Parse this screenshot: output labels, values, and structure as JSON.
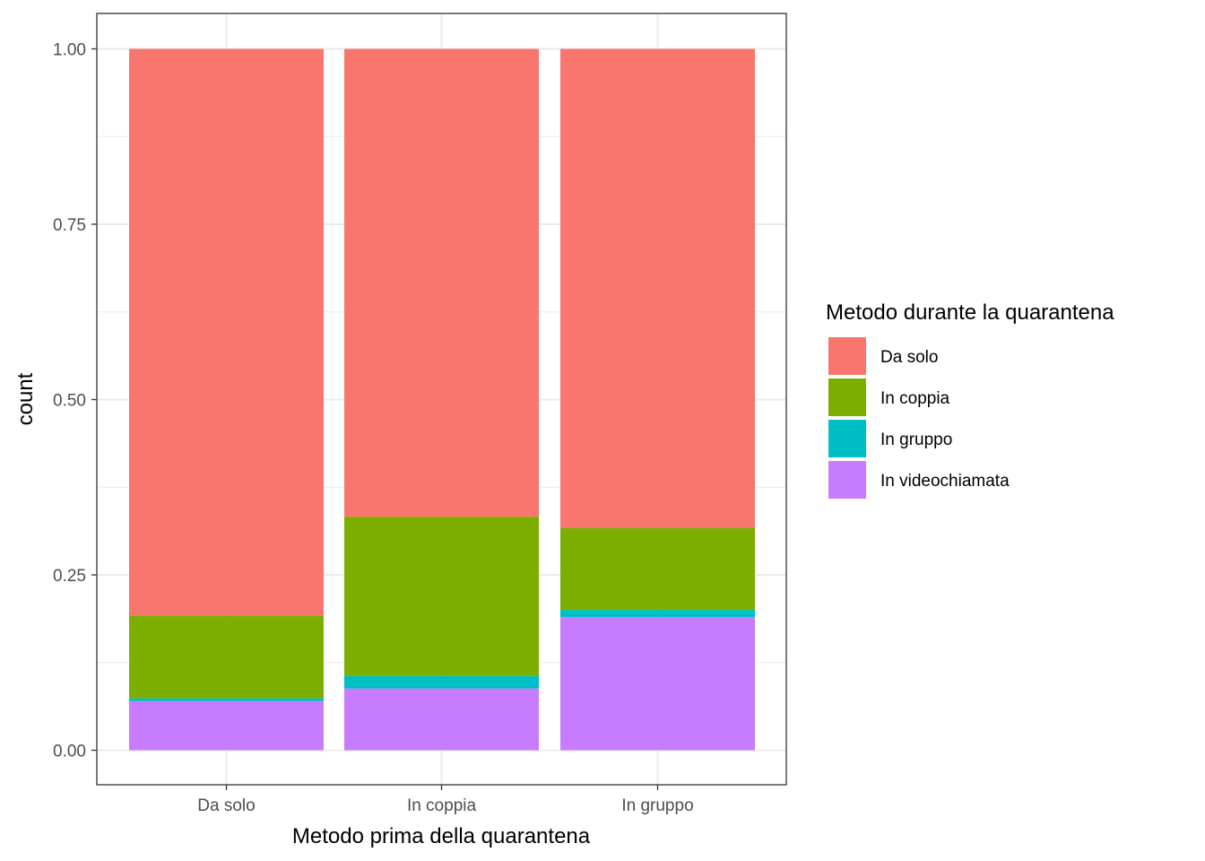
{
  "chart_data": {
    "type": "bar",
    "stacked": true,
    "categories": [
      "Da solo",
      "In coppia",
      "In gruppo"
    ],
    "series": [
      {
        "name": "In videochiamata",
        "color": "#C77CFF",
        "values": [
          0.07,
          0.088,
          0.19
        ]
      },
      {
        "name": "In gruppo",
        "color": "#00BFC4",
        "values": [
          0.004,
          0.018,
          0.01
        ]
      },
      {
        "name": "In coppia",
        "color": "#7CAE00",
        "values": [
          0.118,
          0.227,
          0.117
        ]
      },
      {
        "name": "Da solo",
        "color": "#F8766D",
        "values": [
          0.808,
          0.667,
          0.683
        ]
      }
    ],
    "xlabel": "Metodo prima della quarantena",
    "ylabel": "count",
    "ylim": [
      0,
      1
    ],
    "yticks": [
      0,
      0.25,
      0.5,
      0.75,
      1
    ],
    "ytick_labels": [
      "0.00",
      "0.25",
      "0.50",
      "0.75",
      "1.00"
    ],
    "grid": true,
    "legend": {
      "title": "Metodo durante la quarantena",
      "placement": "right",
      "entries": [
        {
          "label": "Da solo",
          "color": "#F8766D"
        },
        {
          "label": "In coppia",
          "color": "#7CAE00"
        },
        {
          "label": "In gruppo",
          "color": "#00BFC4"
        },
        {
          "label": "In videochiamata",
          "color": "#C77CFF"
        }
      ]
    }
  }
}
